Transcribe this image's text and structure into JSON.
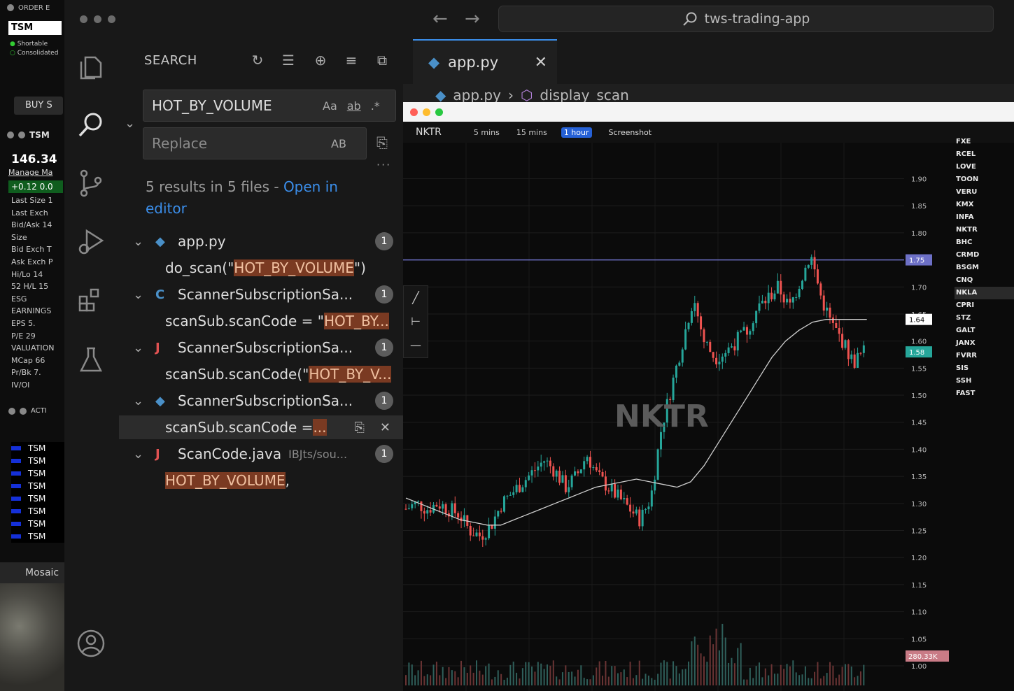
{
  "tws": {
    "order_header": "ORDER E",
    "ticker": "TSM",
    "shortable": "Shortable",
    "consolidated": "Consolidated",
    "buy_label": "BUY S",
    "quote_symbol": "TSM",
    "last_price": "146.34",
    "manage_link": "Manage Ma",
    "change": "+0.12  0.0",
    "rows": [
      "Last Size  1",
      "Last Exch",
      "Bid/Ask  14",
      "Size",
      "Bid Exch  T",
      "Ask Exch  P",
      "Hi/Lo    14",
      "52 H/L   15",
      "ESG",
      "EARNINGS",
      "EPS       5.",
      "P/E       29",
      "VALUATION",
      "MCap     66",
      "Pr/Bk    7.",
      "IV/OI"
    ],
    "activity_header": "ACTI",
    "activity_rows": [
      "TSM",
      "TSM",
      "TSM",
      "TSM",
      "TSM",
      "TSM",
      "TSM",
      "TSM"
    ],
    "mosaic_label": "Mosaic"
  },
  "titlebar": {
    "search_text": "tws-trading-app"
  },
  "search": {
    "title": "SEARCH",
    "query": "HOT_BY_VOLUME",
    "opt_case": "Aa",
    "opt_word": "ab",
    "opt_regex": ".*",
    "replace_placeholder": "Replace",
    "opt_preserve_case": "AB",
    "summary": "5 results in 5 files - ",
    "open_in_editor": "Open in editor",
    "results": [
      {
        "file": "app.py",
        "path": "",
        "count": "1",
        "pre": "do_scan(\"",
        "match": "HOT_BY_VOLUME",
        "post": "\")"
      },
      {
        "file": "ScannerSubscriptionSa...",
        "path": "",
        "count": "1",
        "pre": "scanSub.scanCode = \"",
        "match": "HOT_BY...",
        "post": ""
      },
      {
        "file": "ScannerSubscriptionSa...",
        "path": "",
        "count": "1",
        "pre": "scanSub.scanCode(\"",
        "match": "HOT_BY_V...",
        "post": ""
      },
      {
        "file": "ScannerSubscriptionSa...",
        "path": "",
        "count": "1",
        "pre": "scanSub.scanCode = ",
        "match": "...",
        "post": ""
      },
      {
        "file": "ScanCode.java",
        "path": "IBJts/sou...",
        "count": "1",
        "pre": "",
        "match": "HOT_BY_VOLUME",
        "post": ","
      }
    ]
  },
  "editor": {
    "tab_name": "app.py",
    "breadcrumb_file": "app.py",
    "breadcrumb_symbol": "display_scan"
  },
  "chart_window": {
    "symbol": "NKTR",
    "timeframes": [
      "5 mins",
      "15 mins",
      "1 hour"
    ],
    "selected_timeframe": "1 hour",
    "screenshot_label": "Screenshot",
    "watermark": "NKTR",
    "watchlist": [
      "FXE",
      "RCEL",
      "LOVE",
      "TOON",
      "VERU",
      "KMX",
      "INFA",
      "NKTR",
      "BHC",
      "CRMD",
      "BSGM",
      "CNQ",
      "NKLA",
      "CPRI",
      "STZ",
      "GALT",
      "JANX",
      "FVRR",
      "SIS",
      "SSH",
      "FAST"
    ],
    "selected_watch": "NKLA",
    "colors": {
      "up": "#26a69a",
      "down": "#ef5350",
      "ma": "#cfcfcf",
      "hline": "#6d70c6"
    }
  },
  "chart_data": {
    "type": "candlestick",
    "symbol": "NKTR",
    "ylim": [
      1.0,
      1.92
    ],
    "yticks": [
      1.9,
      1.85,
      1.8,
      1.75,
      1.7,
      1.65,
      1.6,
      1.55,
      1.5,
      1.45,
      1.4,
      1.35,
      1.3,
      1.25,
      1.2,
      1.15,
      1.1,
      1.05,
      1.0
    ],
    "horizontal_line": 1.75,
    "price_labels": [
      {
        "value": "1.75",
        "bg": "#6d70c6"
      },
      {
        "value": "1.64",
        "bg": "#ffffff"
      },
      {
        "value": "1.58",
        "bg": "#26a69a"
      }
    ],
    "volume_label": "280.33K",
    "close_path": [
      1.29,
      1.3,
      1.29,
      1.3,
      1.29,
      1.28,
      1.25,
      1.24,
      1.26,
      1.3,
      1.32,
      1.34,
      1.36,
      1.38,
      1.36,
      1.33,
      1.35,
      1.39,
      1.35,
      1.33,
      1.31,
      1.29,
      1.27,
      1.31,
      1.44,
      1.52,
      1.6,
      1.68,
      1.6,
      1.57,
      1.58,
      1.6,
      1.62,
      1.66,
      1.68,
      1.7,
      1.66,
      1.71,
      1.76,
      1.68,
      1.63,
      1.6,
      1.56,
      1.58
    ],
    "ma_path": [
      1.31,
      1.3,
      1.29,
      1.28,
      1.27,
      1.265,
      1.26,
      1.26,
      1.27,
      1.28,
      1.29,
      1.3,
      1.31,
      1.32,
      1.33,
      1.335,
      1.34,
      1.345,
      1.34,
      1.335,
      1.33,
      1.34,
      1.37,
      1.41,
      1.45,
      1.49,
      1.53,
      1.57,
      1.6,
      1.62,
      1.635,
      1.64,
      1.64,
      1.64,
      1.64
    ]
  }
}
